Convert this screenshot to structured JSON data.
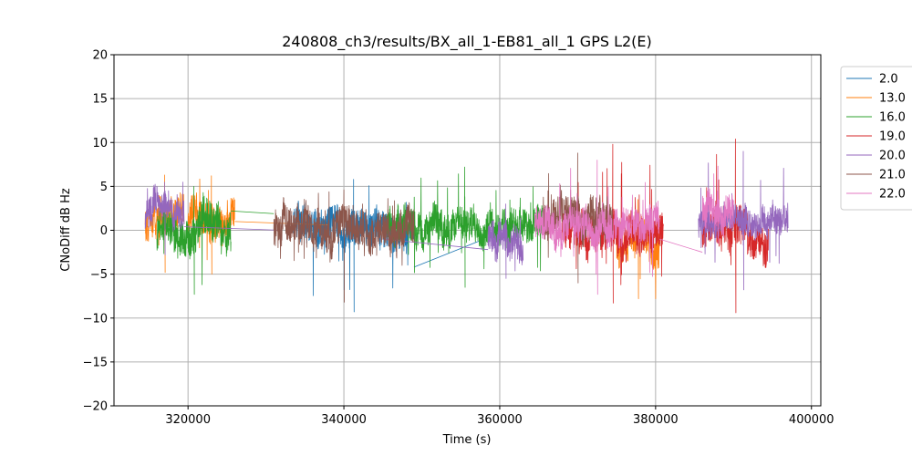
{
  "chart_data": {
    "type": "line",
    "title": "240808_ch3/results/BX_all_1-EB81_all_1 GPS L2(E)",
    "xlabel": "Time (s)",
    "ylabel": "CNoDiff dB Hz",
    "xlim": [
      310500,
      401200
    ],
    "ylim": [
      -20,
      20
    ],
    "xticks": [
      320000,
      340000,
      360000,
      380000,
      400000
    ],
    "yticks": [
      -20,
      -15,
      -10,
      -5,
      0,
      5,
      10,
      15,
      20
    ],
    "grid": true,
    "legend_position": "outside-right-top",
    "series": [
      {
        "name": "2.0",
        "color": "#1f77b4",
        "segments": [
          {
            "start": 333500,
            "end": 349000,
            "base": 0.3,
            "amp": 2.2,
            "min": -9.3,
            "max": 5.8
          }
        ],
        "bridges": [
          [
            349000,
            -4.2,
            358000,
            -1.0
          ]
        ]
      },
      {
        "name": "13.0",
        "color": "#ff7f0e",
        "segments": [
          {
            "start": 314500,
            "end": 319500,
            "base": 0.5,
            "amp": 2.0,
            "min": -4.8,
            "max": 6.3
          },
          {
            "start": 320000,
            "end": 326000,
            "base": 0.8,
            "amp": 2.0,
            "min": -5.0,
            "max": 6.2
          },
          {
            "start": 375000,
            "end": 380500,
            "base": -1.5,
            "amp": 2.3,
            "min": -7.8,
            "max": 3.5
          }
        ],
        "bridges": [
          [
            326000,
            1.0,
            338000,
            0.6
          ]
        ]
      },
      {
        "name": "16.0",
        "color": "#2ca02c",
        "segments": [
          {
            "start": 316000,
            "end": 325500,
            "base": -0.3,
            "amp": 2.3,
            "min": -7.3,
            "max": 5.0
          },
          {
            "start": 345500,
            "end": 365500,
            "base": 0.6,
            "amp": 2.0,
            "min": -6.5,
            "max": 7.2
          }
        ],
        "bridges": [
          [
            325500,
            2.2,
            331000,
            1.9
          ]
        ]
      },
      {
        "name": "19.0",
        "color": "#d62728",
        "segments": [
          {
            "start": 368000,
            "end": 381000,
            "base": -0.5,
            "amp": 2.3,
            "min": -8.3,
            "max": 9.8
          },
          {
            "start": 386000,
            "end": 394500,
            "base": 0.0,
            "amp": 2.3,
            "min": -9.4,
            "max": 10.4
          }
        ],
        "bridges": []
      },
      {
        "name": "20.0",
        "color": "#9467bd",
        "segments": [
          {
            "start": 314500,
            "end": 319500,
            "base": 2.0,
            "amp": 1.8,
            "min": -2.8,
            "max": 5.5
          },
          {
            "start": 358500,
            "end": 363000,
            "base": -1.0,
            "amp": 2.0,
            "min": -5.5,
            "max": 3.0
          },
          {
            "start": 385500,
            "end": 397000,
            "base": 0.8,
            "amp": 1.7,
            "min": -6.8,
            "max": 9.0
          }
        ],
        "bridges": [
          [
            319500,
            0.4,
            332000,
            0.0
          ],
          [
            345000,
            -1.0,
            358500,
            -2.2
          ]
        ]
      },
      {
        "name": "21.0",
        "color": "#8c564b",
        "segments": [
          {
            "start": 331000,
            "end": 349000,
            "base": 0.5,
            "amp": 2.2,
            "min": -8.2,
            "max": 4.6
          },
          {
            "start": 365500,
            "end": 374500,
            "base": 1.5,
            "amp": 2.2,
            "min": -6.0,
            "max": 8.8
          }
        ],
        "bridges": []
      },
      {
        "name": "22.0",
        "color": "#e377c2",
        "segments": [
          {
            "start": 364500,
            "end": 380500,
            "base": 0.6,
            "amp": 2.0,
            "min": -7.3,
            "max": 8.0
          },
          {
            "start": 386000,
            "end": 390000,
            "base": 2.0,
            "amp": 2.0,
            "min": -1.5,
            "max": 7.3
          }
        ],
        "bridges": [
          [
            380500,
            -1.0,
            386000,
            -2.5
          ]
        ]
      }
    ]
  }
}
